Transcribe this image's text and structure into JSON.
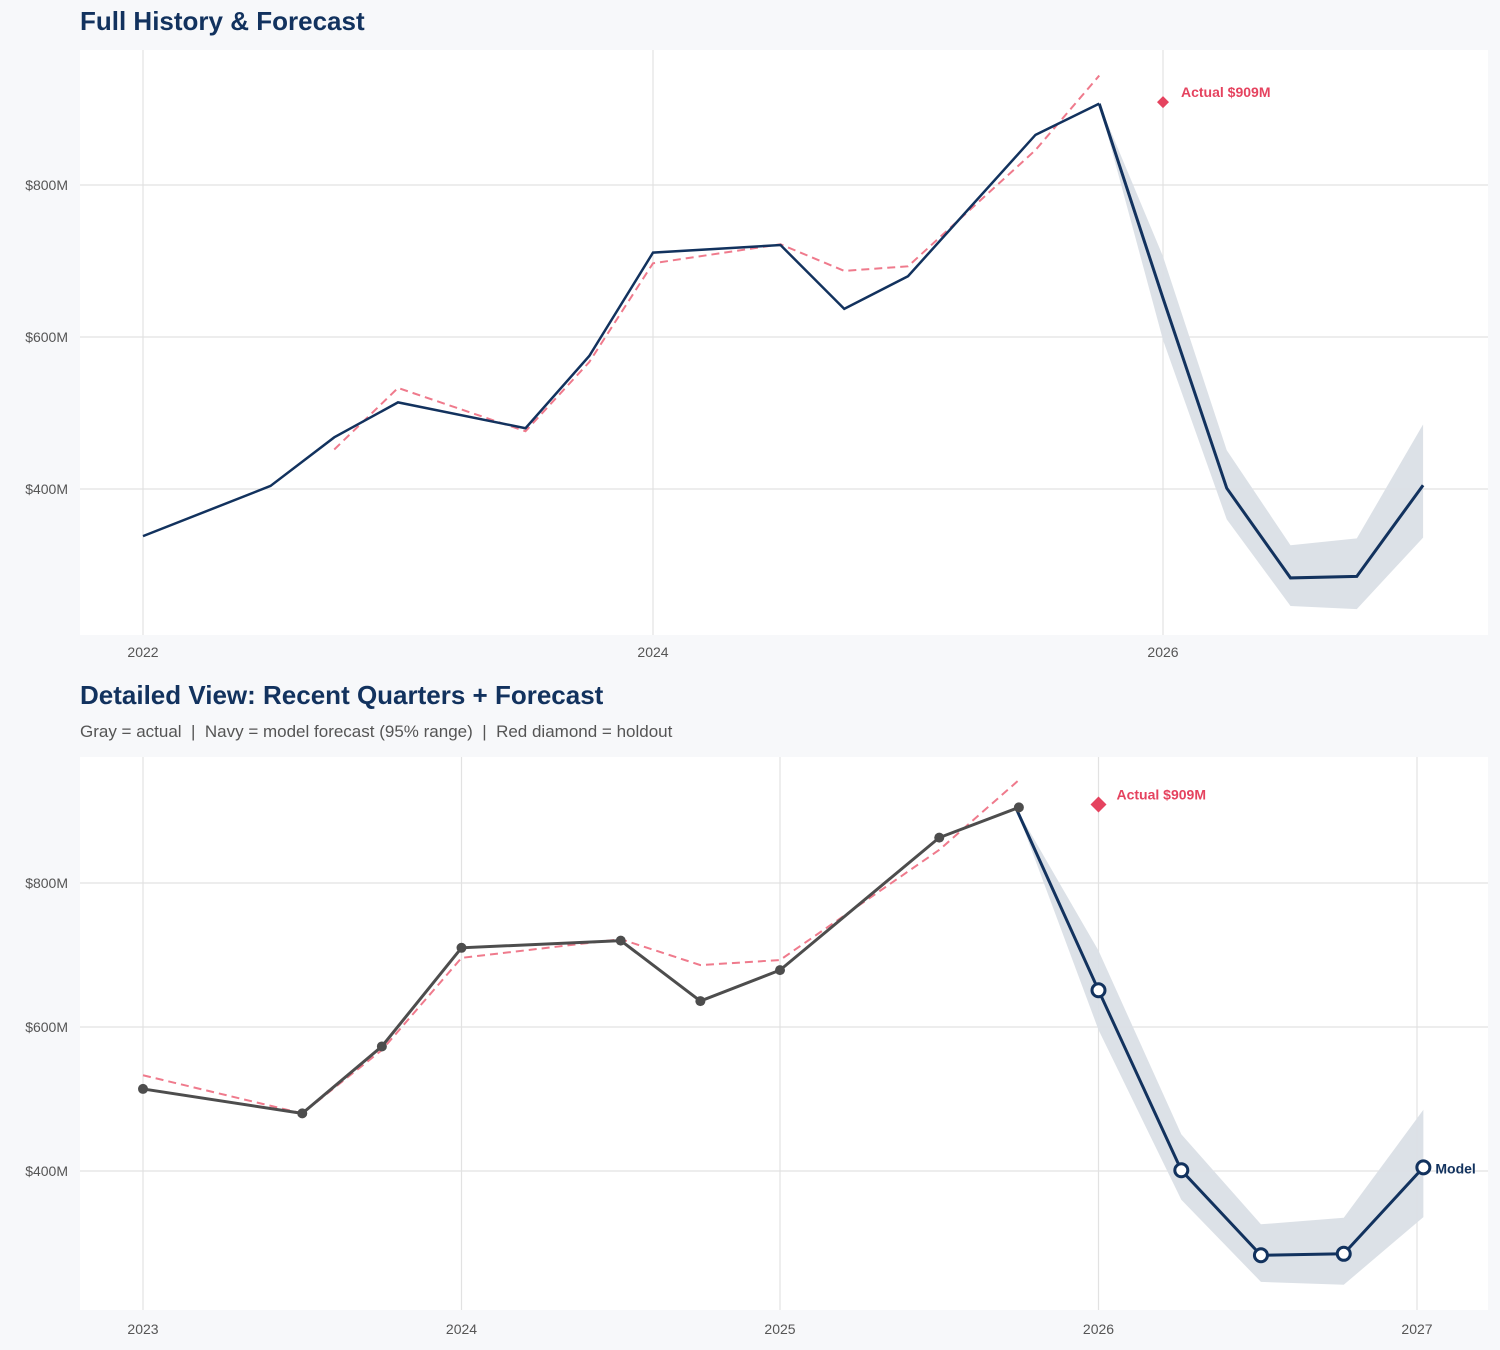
{
  "colors": {
    "navy": "#12325e",
    "gray": "#4d4d4d",
    "red": "#e5435f",
    "band": "#dadfe6",
    "fit": "#ef7a8c",
    "grid": "#e2e2e2"
  },
  "chart_data": [
    {
      "type": "line",
      "title": "Full History & Forecast",
      "x_ticks": [
        2022,
        2024,
        2026
      ],
      "y_ticks": [
        {
          "v": 400,
          "label": "$400M"
        },
        {
          "v": 600,
          "label": "$600M"
        },
        {
          "v": 800,
          "label": "$800M"
        }
      ],
      "actual": {
        "x": [
          2022.0,
          2022.5,
          2022.75,
          2023.0,
          2023.5,
          2023.75,
          2024.0,
          2024.5,
          2024.75,
          2025.0,
          2025.5,
          2025.75
        ],
        "y": [
          338,
          404,
          468,
          514,
          480,
          575,
          711,
          721,
          637,
          680,
          866,
          907
        ]
      },
      "fitted": {
        "x": [
          2022.75,
          2023.0,
          2023.5,
          2023.75,
          2024.0,
          2024.5,
          2024.75,
          2025.0,
          2025.5,
          2025.75
        ],
        "y": [
          452,
          533,
          476,
          567,
          697,
          722,
          687,
          693,
          846,
          944
        ]
      },
      "forecast": {
        "x": [
          2025.75,
          2026.0,
          2026.25,
          2026.5,
          2026.76,
          2027.02
        ],
        "y": [
          907,
          651,
          401,
          283,
          285,
          405
        ],
        "lower": [
          907,
          596,
          360,
          246,
          242,
          336
        ],
        "upper": [
          907,
          706,
          451,
          326,
          335,
          485
        ]
      },
      "holdout": {
        "x": 2026.0,
        "y": 909,
        "label": "Actual $909M"
      }
    },
    {
      "type": "line",
      "title": "Detailed View: Recent Quarters + Forecast",
      "subtitle": "Gray = actual  |  Navy = model forecast (95% range)  |  Red diamond = holdout",
      "x_ticks": [
        2023,
        2024,
        2025,
        2026,
        2027
      ],
      "y_ticks": [
        {
          "v": 400,
          "label": "$400M"
        },
        {
          "v": 600,
          "label": "$600M"
        },
        {
          "v": 800,
          "label": "$800M"
        }
      ],
      "actual": {
        "x": [
          2023.0,
          2023.5,
          2023.75,
          2024.0,
          2024.5,
          2024.75,
          2025.0,
          2025.5,
          2025.75
        ],
        "y": [
          514,
          480,
          573,
          710,
          720,
          636,
          679,
          863,
          905
        ]
      },
      "fitted": {
        "x": [
          2023.0,
          2023.5,
          2023.75,
          2024.0,
          2024.5,
          2024.75,
          2025.0,
          2025.5,
          2025.75
        ],
        "y": [
          533,
          480,
          568,
          696,
          722,
          686,
          693,
          846,
          943
        ]
      },
      "forecast": {
        "x": [
          2025.74,
          2026.0,
          2026.26,
          2026.51,
          2026.77,
          2027.02
        ],
        "y": [
          905,
          651,
          401,
          283,
          285,
          405
        ],
        "lower": [
          905,
          596,
          360,
          246,
          242,
          336
        ],
        "upper": [
          905,
          706,
          451,
          326,
          335,
          485
        ]
      },
      "holdout": {
        "x": 2026.0,
        "y": 909,
        "label": "Actual $909M"
      },
      "end_label": "Model"
    }
  ]
}
